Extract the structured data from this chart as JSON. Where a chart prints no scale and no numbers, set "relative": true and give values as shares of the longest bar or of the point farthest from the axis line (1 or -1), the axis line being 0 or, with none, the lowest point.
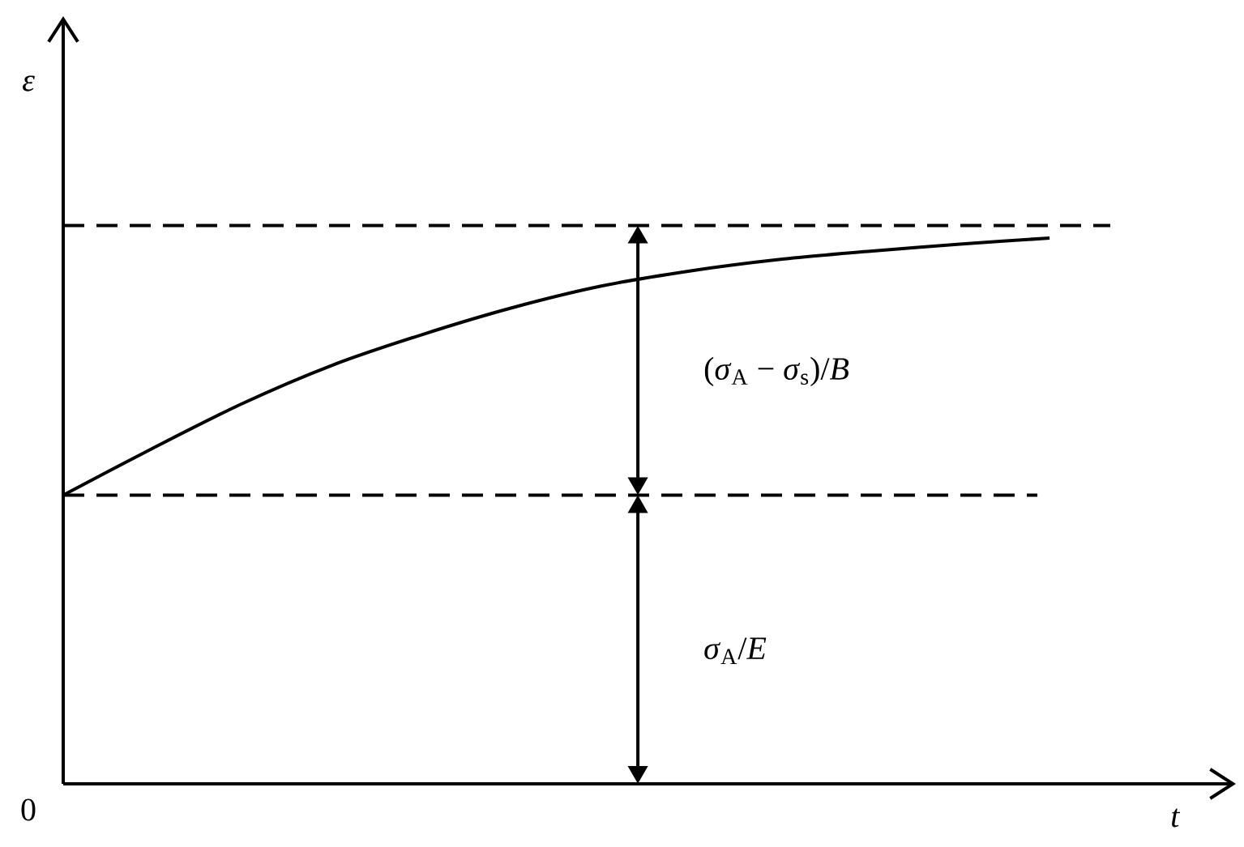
{
  "chart_data": {
    "type": "line",
    "xlabel": "t",
    "ylabel": "ε",
    "categories": [
      null,
      null,
      null,
      null,
      null,
      null,
      null,
      null,
      null,
      null,
      null,
      null
    ],
    "values": [
      0.529,
      0.615,
      0.697,
      0.767,
      0.823,
      0.872,
      0.912,
      0.94,
      0.961,
      0.976,
      0.989,
      1.0
    ],
    "color": "#000000",
    "relative": true,
    "ref_lines": [
      {
        "axis": "y",
        "value": 0.529,
        "line_style": "dashed",
        "color": "#000000"
      },
      {
        "axis": "y",
        "value": 1.023,
        "line_style": "dashed",
        "color": "#000000"
      }
    ],
    "annotations": [
      "0",
      "(*σ*$_{A}$ − *σ*$_{s}$)/*B*",
      "*σ*$_{A}$/*E*"
    ]
  }
}
